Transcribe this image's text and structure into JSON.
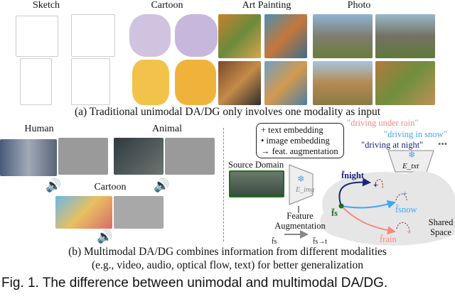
{
  "top": {
    "columns": [
      "Sketch",
      "Cartoon",
      "Art Painting",
      "Photo"
    ],
    "caption": "(a) Traditional unimodal DA/DG only involves one modality as input"
  },
  "bottom_left": {
    "human": "Human",
    "animal": "Animal",
    "cartoon": "Cartoon"
  },
  "legend": {
    "text": "+ text embedding",
    "image": "• image embedding",
    "aug": "→ feat. augmentation"
  },
  "prompts": {
    "rain": "\"driving under rain\"",
    "snow": "\"driving in snow\"",
    "night": "\"driving at night\"",
    "more": "•••"
  },
  "labels": {
    "source": "Source Domain",
    "eimg": "E_img",
    "etxt": "E_txt",
    "feature_aug": "Feature Augmentation",
    "fs": "f̄s",
    "fsrt": "f̄s→t",
    "f_night": "f̄night",
    "f_snow": "f̄snow",
    "f_rain": "f̄rain",
    "f_s": "f̄s",
    "shared": "Shared Space"
  },
  "colors": {
    "night": "#1a237e",
    "snow": "#42a5f5",
    "rain": "#f48a80",
    "source": "#1b6e1b"
  },
  "captions": {
    "b_line1": "(b) Multimodal DA/DG combines information from different modalities",
    "b_line2": "(e.g., video, audio, optical flow, text) for better generalization",
    "figure": "Fig. 1. The difference between unimodal and multimodal DA/DG."
  }
}
